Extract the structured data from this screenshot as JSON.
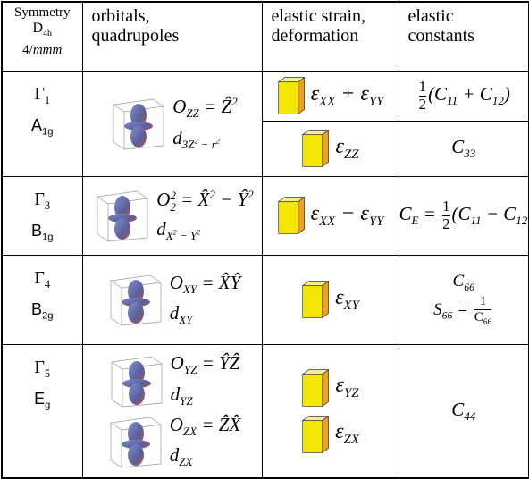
{
  "header": {
    "symmetry": "Symmetry",
    "group": [
      {
        "text": "D"
      },
      {
        "sub": "4h"
      }
    ],
    "class": [
      {
        "text": "4/"
      },
      {
        "it": "mmm"
      }
    ],
    "orbitals": [
      "orbitals,",
      "quadrupoles"
    ],
    "strain": [
      "elastic strain,",
      "deformation"
    ],
    "constants": [
      "elastic",
      "constants"
    ]
  },
  "rows": [
    {
      "irrep": [
        {
          "text": "Γ"
        },
        {
          "sub": "1"
        }
      ],
      "label": [
        {
          "text": "A"
        },
        {
          "sub": "1g"
        }
      ],
      "orbitals": [
        [
          [
            {
              "text": "O"
            },
            {
              "sub": "ZZ"
            },
            {
              "text": " = Ẑ"
            },
            {
              "sup": "2"
            }
          ],
          [
            {
              "text": "d"
            },
            {
              "sub": [
                {
                  "text": "3Z"
                },
                {
                  "sup": "2"
                },
                {
                  "text": " − r"
                },
                {
                  "sup": "2"
                }
              ]
            }
          ]
        ]
      ],
      "strain": [
        [
          [
            {
              "text": "ε"
            },
            {
              "sub": "XX"
            },
            {
              "text": " + ε"
            },
            {
              "sub": "YY"
            }
          ]
        ],
        [
          [
            {
              "text": "ε"
            },
            {
              "sub": "ZZ"
            }
          ]
        ]
      ],
      "constants": [
        [
          [
            {
              "frac": {
                "num": [
                  {
                    "text": "1"
                  }
                ],
                "den": [
                  {
                    "text": "2"
                  }
                ]
              }
            },
            {
              "text": "(C"
            },
            {
              "sub": "11"
            },
            {
              "text": " + C"
            },
            {
              "sub": "12"
            },
            {
              "text": ")"
            }
          ]
        ],
        [
          [
            {
              "text": "C"
            },
            {
              "sub": "33"
            }
          ]
        ]
      ]
    },
    {
      "irrep": [
        {
          "text": "Γ"
        },
        {
          "sub": "3"
        }
      ],
      "label": [
        {
          "text": "B"
        },
        {
          "sub": "1g"
        }
      ],
      "orbitals": [
        [
          [
            {
              "text": "O"
            },
            {
              "stack": {
                "up": "2",
                "down": "2"
              }
            },
            {
              "text": " = X̂"
            },
            {
              "sup": "2"
            },
            {
              "text": " − Ŷ"
            },
            {
              "sup": "2"
            }
          ],
          [
            {
              "text": "d"
            },
            {
              "sub": [
                {
                  "text": "X"
                },
                {
                  "sup": "2"
                },
                {
                  "text": " − Y"
                },
                {
                  "sup": "2"
                }
              ]
            }
          ]
        ]
      ],
      "strain": [
        [
          [
            {
              "text": "ε"
            },
            {
              "sub": "XX"
            },
            {
              "text": " − ε"
            },
            {
              "sub": "YY"
            }
          ]
        ]
      ],
      "constants": [
        [
          [
            {
              "text": "C"
            },
            {
              "sub": "E"
            },
            {
              "text": " = "
            },
            {
              "frac": {
                "num": [
                  {
                    "text": "1"
                  }
                ],
                "den": [
                  {
                    "text": "2"
                  }
                ]
              }
            },
            {
              "text": "(C"
            },
            {
              "sub": "11"
            },
            {
              "text": " − C"
            },
            {
              "sub": "12"
            },
            {
              "text": ")"
            }
          ]
        ]
      ]
    },
    {
      "irrep": [
        {
          "text": "Γ"
        },
        {
          "sub": "4"
        }
      ],
      "label": [
        {
          "text": "B"
        },
        {
          "sub": "2g"
        }
      ],
      "orbitals": [
        [
          [
            {
              "text": "O"
            },
            {
              "sub": "XY"
            },
            {
              "text": " = X̂Ŷ"
            }
          ],
          [
            {
              "text": "d"
            },
            {
              "sub": "XY"
            }
          ]
        ]
      ],
      "strain": [
        [
          [
            {
              "text": "ε"
            },
            {
              "sub": "XY"
            }
          ]
        ]
      ],
      "constants": [
        [
          [
            {
              "text": "C"
            },
            {
              "sub": "66"
            }
          ],
          [
            {
              "text": "S"
            },
            {
              "sub": "66"
            },
            {
              "text": " = "
            },
            {
              "frac": {
                "num": [
                  {
                    "text": "1"
                  }
                ],
                "den": [
                  {
                    "text": "C"
                  },
                  {
                    "sub": "66"
                  }
                ]
              }
            }
          ]
        ]
      ]
    },
    {
      "irrep": [
        {
          "text": "Γ"
        },
        {
          "sub": "5"
        }
      ],
      "label": [
        {
          "text": "E"
        },
        {
          "sub": "g"
        }
      ],
      "orbitals": [
        [
          [
            {
              "text": "O"
            },
            {
              "sub": "YZ"
            },
            {
              "text": " = ŶẐ"
            }
          ],
          [
            {
              "text": "d"
            },
            {
              "sub": "YZ"
            }
          ]
        ],
        [
          [
            {
              "text": "O"
            },
            {
              "sub": "ZX"
            },
            {
              "text": " = ẐX̂"
            }
          ],
          [
            {
              "text": "d"
            },
            {
              "sub": "ZX"
            }
          ]
        ]
      ],
      "strain": [
        [
          [
            {
              "text": "ε"
            },
            {
              "sub": "YZ"
            }
          ],
          [
            {
              "text": "ε"
            },
            {
              "sub": "ZX"
            }
          ]
        ]
      ],
      "constants": [
        [
          [
            {
              "text": "C"
            },
            {
              "sub": "44"
            }
          ]
        ]
      ]
    }
  ]
}
